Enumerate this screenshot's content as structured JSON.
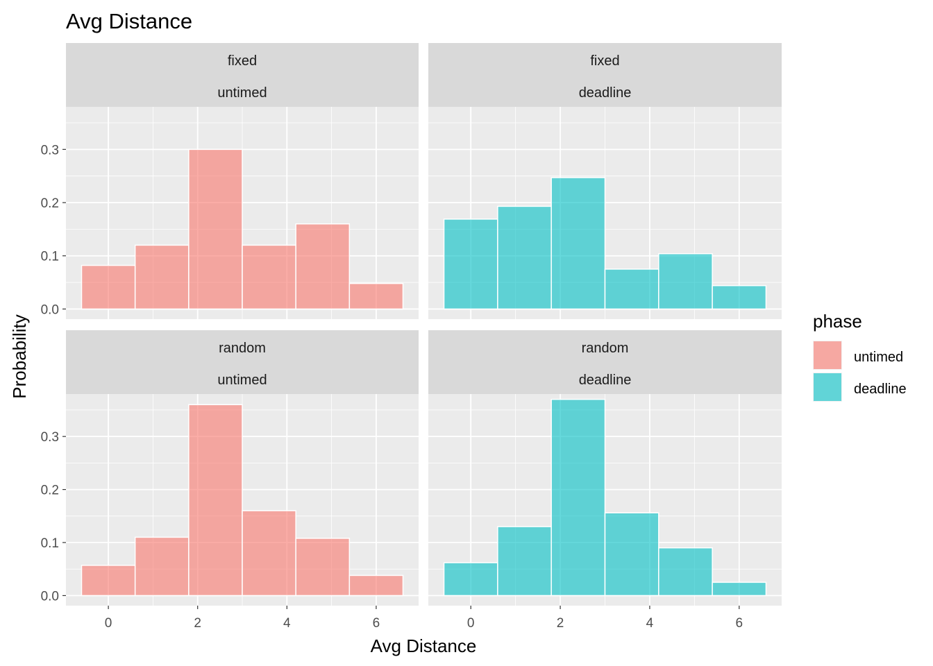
{
  "chart_data": {
    "type": "bar",
    "title": "Avg Distance",
    "xlabel": "Avg Distance",
    "ylabel": "Probability",
    "xlim": [
      -0.95,
      6.95
    ],
    "ylim": [
      -0.019,
      0.38
    ],
    "x_ticks": [
      0,
      2,
      4,
      6
    ],
    "y_ticks": [
      0.0,
      0.1,
      0.2,
      0.3
    ],
    "y_tick_labels": [
      "0.0",
      "0.1",
      "0.2",
      "0.3"
    ],
    "bin_width": 1.2,
    "grid": true,
    "legend": {
      "title": "phase",
      "position": "right",
      "entries": [
        {
          "label": "untimed",
          "color": "#F8766D"
        },
        {
          "label": "deadline",
          "color": "#00BFC4"
        }
      ]
    },
    "panels": [
      {
        "strip": [
          "fixed",
          "untimed"
        ],
        "phase": "untimed",
        "bins": [
          {
            "x": 0.0,
            "value": 0.082
          },
          {
            "x": 1.2,
            "value": 0.12
          },
          {
            "x": 2.4,
            "value": 0.3
          },
          {
            "x": 3.6,
            "value": 0.12
          },
          {
            "x": 4.8,
            "value": 0.16
          },
          {
            "x": 6.0,
            "value": 0.048
          }
        ]
      },
      {
        "strip": [
          "fixed",
          "deadline"
        ],
        "phase": "deadline",
        "bins": [
          {
            "x": 0.0,
            "value": 0.169
          },
          {
            "x": 1.2,
            "value": 0.193
          },
          {
            "x": 2.4,
            "value": 0.247
          },
          {
            "x": 3.6,
            "value": 0.075
          },
          {
            "x": 4.8,
            "value": 0.104
          },
          {
            "x": 6.0,
            "value": 0.044
          }
        ]
      },
      {
        "strip": [
          "random",
          "untimed"
        ],
        "phase": "untimed",
        "bins": [
          {
            "x": 0.0,
            "value": 0.057
          },
          {
            "x": 1.2,
            "value": 0.11
          },
          {
            "x": 2.4,
            "value": 0.36
          },
          {
            "x": 3.6,
            "value": 0.16
          },
          {
            "x": 4.8,
            "value": 0.108
          },
          {
            "x": 6.0,
            "value": 0.038
          }
        ]
      },
      {
        "strip": [
          "random",
          "deadline"
        ],
        "phase": "deadline",
        "bins": [
          {
            "x": 0.0,
            "value": 0.062
          },
          {
            "x": 1.2,
            "value": 0.13
          },
          {
            "x": 2.4,
            "value": 0.37
          },
          {
            "x": 3.6,
            "value": 0.156
          },
          {
            "x": 4.8,
            "value": 0.09
          },
          {
            "x": 6.0,
            "value": 0.025
          }
        ]
      }
    ]
  }
}
